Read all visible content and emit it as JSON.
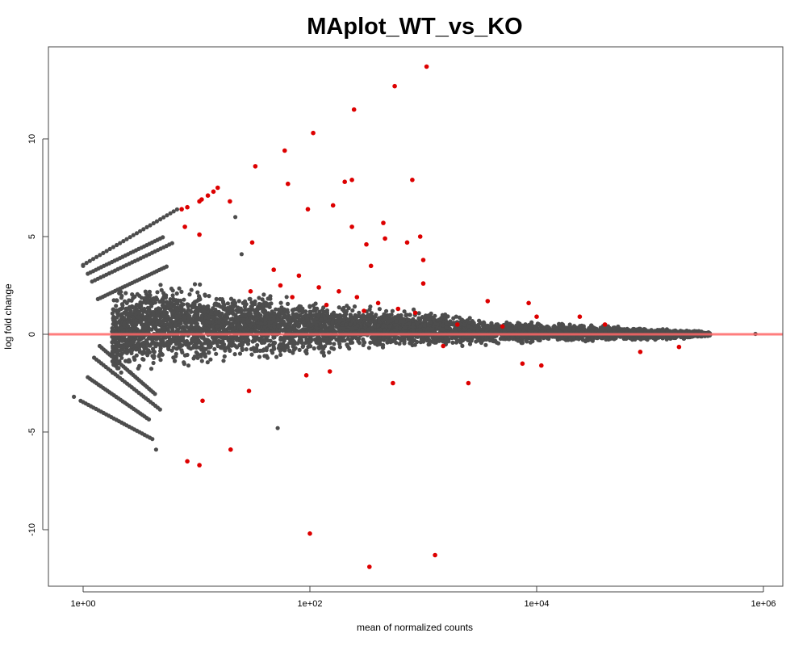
{
  "chart_data": {
    "type": "scatter",
    "title": "MAplot_WT_vs_KO",
    "xlabel": "mean of normalized counts",
    "ylabel": "log fold change",
    "x_scale": "log10",
    "xlim": [
      0.55,
      1500000
    ],
    "ylim": [
      -12.7,
      14.9
    ],
    "x_ticks": [
      {
        "value": 1,
        "label": "1e+00"
      },
      {
        "value": 100,
        "label": "1e+02"
      },
      {
        "value": 10000,
        "label": "1e+04"
      },
      {
        "value": 1000000,
        "label": "1e+06"
      }
    ],
    "y_ticks": [
      {
        "value": -10,
        "label": "-10"
      },
      {
        "value": -5,
        "label": "-5"
      },
      {
        "value": 0,
        "label": "0"
      },
      {
        "value": 5,
        "label": "5"
      },
      {
        "value": 10,
        "label": "10"
      }
    ],
    "grid": false,
    "reference_line": {
      "y": 0,
      "color": "#FF6666"
    },
    "colors": {
      "nonsignificant": "#4D4D4D",
      "significant": "#DD0000"
    },
    "nonsignificant_envelope": [
      [
        1.8,
        2.2,
        -2.3
      ],
      [
        4.9,
        3.0,
        -1.9
      ],
      [
        25,
        2.4,
        -1.5
      ],
      [
        130,
        1.8,
        -1.1
      ],
      [
        670,
        1.4,
        -0.75
      ],
      [
        3400,
        0.8,
        -0.6
      ],
      [
        17700,
        0.6,
        -0.45
      ],
      [
        90000,
        0.37,
        -0.33
      ],
      [
        200000,
        0.25,
        -0.25
      ],
      [
        340000,
        0.12,
        -0.1
      ]
    ],
    "nonsignificant_streaks": [
      [
        1,
        3.55,
        7.0,
        6.45
      ],
      [
        1.2,
        2.7,
        6.3,
        4.7
      ],
      [
        1.35,
        1.8,
        5.6,
        3.5
      ],
      [
        1.1,
        3.1,
        5.2,
        5.0
      ],
      [
        0.95,
        -3.4,
        4.2,
        -5.4
      ],
      [
        1.1,
        -2.2,
        3.9,
        -4.4
      ],
      [
        1.25,
        -1.2,
        4.9,
        -3.9
      ],
      [
        1.4,
        -0.6,
        4.4,
        -3.1
      ]
    ],
    "nonsignificant_points": [
      [
        0.83,
        -3.2
      ],
      [
        850000,
        0.02
      ],
      [
        4.4,
        -5.9
      ],
      [
        52,
        -4.8
      ],
      [
        3.9,
        2.0
      ],
      [
        1.0,
        3.5
      ],
      [
        22,
        6.0
      ],
      [
        25,
        4.1
      ]
    ],
    "significant_points": [
      [
        1070,
        13.7
      ],
      [
        560,
        12.7
      ],
      [
        245,
        11.5
      ],
      [
        107,
        10.3
      ],
      [
        60,
        9.4
      ],
      [
        33,
        8.6
      ],
      [
        235,
        7.9
      ],
      [
        800,
        7.9
      ],
      [
        64,
        7.7
      ],
      [
        203,
        7.8
      ],
      [
        7.4,
        6.4
      ],
      [
        8.3,
        6.5
      ],
      [
        10.6,
        6.8
      ],
      [
        11.1,
        6.9
      ],
      [
        12.6,
        7.1
      ],
      [
        14.1,
        7.3
      ],
      [
        15.4,
        7.5
      ],
      [
        19.7,
        6.8
      ],
      [
        96,
        6.4
      ],
      [
        160,
        6.6
      ],
      [
        444,
        5.7
      ],
      [
        235,
        5.5
      ],
      [
        940,
        5.0
      ],
      [
        720,
        4.7
      ],
      [
        460,
        4.9
      ],
      [
        31,
        4.7
      ],
      [
        7.9,
        5.5
      ],
      [
        10.6,
        5.1
      ],
      [
        315,
        4.6
      ],
      [
        1000,
        3.8
      ],
      [
        346,
        3.5
      ],
      [
        1000,
        2.6
      ],
      [
        48,
        3.3
      ],
      [
        80,
        3.0
      ],
      [
        120,
        2.4
      ],
      [
        180,
        2.2
      ],
      [
        260,
        1.9
      ],
      [
        400,
        1.6
      ],
      [
        600,
        1.3
      ],
      [
        850,
        1.1
      ],
      [
        30,
        2.2
      ],
      [
        55,
        2.5
      ],
      [
        70,
        1.9
      ],
      [
        140,
        1.5
      ],
      [
        300,
        1.2
      ],
      [
        100,
        -10.2
      ],
      [
        335,
        -11.9
      ],
      [
        1270,
        -11.3
      ],
      [
        20,
        -5.9
      ],
      [
        10.6,
        -6.7
      ],
      [
        8.3,
        -6.5
      ],
      [
        11.3,
        -3.4
      ],
      [
        29,
        -2.9
      ],
      [
        93,
        -2.1
      ],
      [
        540,
        -2.5
      ],
      [
        2500,
        -2.5
      ],
      [
        150,
        -1.9
      ],
      [
        7500,
        -1.5
      ],
      [
        11000,
        -1.6
      ],
      [
        82000,
        -0.9
      ],
      [
        8500,
        1.6
      ],
      [
        3700,
        1.7
      ],
      [
        10000,
        0.9
      ],
      [
        24000,
        0.9
      ],
      [
        180000,
        -0.65
      ],
      [
        2000,
        0.5
      ],
      [
        1500,
        -0.6
      ],
      [
        5000,
        0.4
      ],
      [
        40000,
        0.5
      ]
    ]
  }
}
